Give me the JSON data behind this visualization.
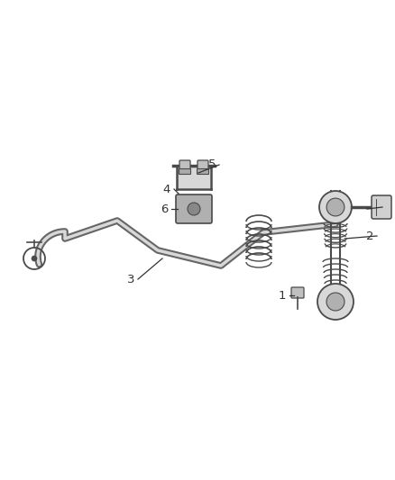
{
  "background_color": "#ffffff",
  "line_color": "#4a4a4a",
  "label_color": "#333333",
  "fig_width": 4.38,
  "fig_height": 5.33,
  "dpi": 100,
  "xlim": [
    0,
    438
  ],
  "ylim": [
    0,
    533
  ],
  "bar_lw_outer": 3.5,
  "bar_lw_inner": 1.8
}
